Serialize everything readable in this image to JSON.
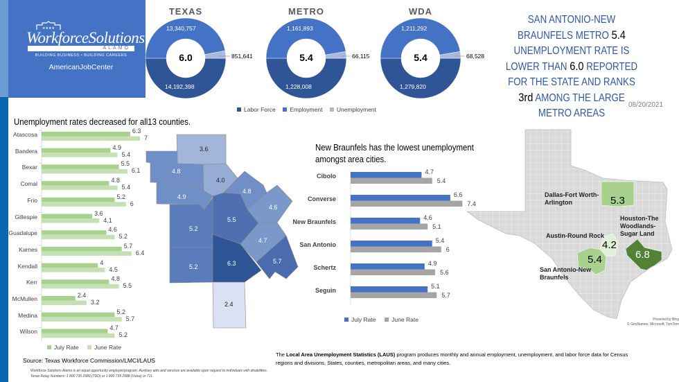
{
  "logo": {
    "name": "WorkforceSolutions",
    "sub": "ALAMO",
    "tagline": "BUILDING BUSINESS • BUILDING CAREERS",
    "ajc": "AmericanJobCenter"
  },
  "colors": {
    "labor_force": "#2f5597",
    "employment": "#4472c4",
    "unemployment": "#a9b8dc",
    "july_green": "#a9d18e",
    "june_green": "#c5e0b4",
    "july_blue": "#4472c4",
    "june_gray": "#a5a5a5",
    "headline": "#2f58a8"
  },
  "donuts": {
    "legend": [
      "Labor Force",
      "Employment",
      "Unemployment"
    ],
    "charts": [
      {
        "title": "TEXAS",
        "rate": "6.0",
        "labor_force": 14192398,
        "employment": 13340757,
        "unemployment": 851641,
        "labor_force_label": "14,192,398",
        "employment_label": "13,340,757",
        "unemployment_label": "851,641"
      },
      {
        "title": "METRO",
        "rate": "5.4",
        "labor_force": 1228008,
        "employment": 1161893,
        "unemployment": 66115,
        "labor_force_label": "1,228,008",
        "employment_label": "1,161,893",
        "unemployment_label": "66,115"
      },
      {
        "title": "WDA",
        "rate": "5.4",
        "labor_force": 1279820,
        "employment": 1211292,
        "unemployment": 68528,
        "labor_force_label": "1,279,820",
        "employment_label": "1,211,292",
        "unemployment_label": "68,528"
      }
    ]
  },
  "headline": {
    "l1": "SAN ANTONIO-NEW",
    "l2a": "BRAUNFELS METRO ",
    "l2b": "5.4",
    "l3": "UNEMPLOYMENT RATE IS",
    "l4a": "LOWER THAN ",
    "l4b": "6.0",
    "l4c": " REPORTED",
    "l5": "FOR THE STATE AND RANKS",
    "l6a": "3rd",
    "l6b": " AMONG THE LARGE",
    "l7": "METRO AREAS"
  },
  "date": "08/20/2021",
  "chart_data": [
    {
      "type": "bar",
      "orientation": "horizontal",
      "title": "Unemployment rates decreased for  all13 counties.",
      "categories": [
        "Atascosa",
        "Bandera",
        "Bexar",
        "Comal",
        "Frio",
        "Gillespie",
        "Guadalupe",
        "Karnes",
        "Kendall",
        "Kerr",
        "McMullen",
        "Medina",
        "Wilson"
      ],
      "series": [
        {
          "name": "July Rate",
          "values": [
            6.3,
            4.9,
            5.5,
            4.8,
            5.2,
            3.6,
            4.6,
            5.7,
            4,
            4.8,
            2.4,
            5.2,
            4.7
          ]
        },
        {
          "name": "June Rate",
          "values": [
            7,
            5.4,
            6.1,
            5.4,
            6,
            4.1,
            5.2,
            6.4,
            4.5,
            5.5,
            3.2,
            5.7,
            5.2
          ]
        }
      ],
      "legend": "bottom"
    },
    {
      "type": "bar",
      "orientation": "horizontal",
      "title": "New Braunfels has the lowest unemployment amongst area cities.",
      "categories": [
        "Cibolo",
        "Converse",
        "New Braunfels",
        "San Antonio",
        "Schertz",
        "Seguin"
      ],
      "series": [
        {
          "name": "July Rate",
          "values": [
            4.7,
            6.6,
            4.6,
            5.4,
            4.9,
            5.1
          ]
        },
        {
          "name": "June Rate",
          "values": [
            5.4,
            7.4,
            5.1,
            6,
            5.6,
            5.7
          ]
        }
      ],
      "legend": "bottom"
    }
  ],
  "county_map": {
    "values": {
      "Gillespie": "3.6",
      "Kerr": "4.8",
      "Kendall": "4.0",
      "Bandera": "4.9",
      "Comal": "4.8",
      "Guadalupe": "4.6",
      "Bexar": "5.5",
      "Medina": "5.2",
      "Frio": "5.2",
      "Atascosa": "6.3",
      "Wilson": "4.7",
      "Karnes": "5.7",
      "McMullen": "2.4"
    }
  },
  "texas_map": {
    "areas": [
      {
        "name": "Dallas-Fort Worth-Arlington",
        "value": "5.3"
      },
      {
        "name": "Houston-The Woodlands-Sugar Land",
        "value": "6.8"
      },
      {
        "name": "Austin-Round Rock",
        "value": "4.2"
      },
      {
        "name": "San Antonio-New Braunfels",
        "value": "5.4"
      }
    ],
    "credit1": "Powered by Bing",
    "credit2": "© GeoNames, Microsoft, TomTom"
  },
  "source": "Source: Texas Workforce Commission/LMCI/LAUS",
  "laus": {
    "pre": "The ",
    "bold": "Local Area Unemployment Statistics (LAUS)",
    "post": " program produces monthly and annual employment, unemployment, and labor force data for Census",
    "l2": "regions and divisions, States, counties, metropolitan areas, and many cities."
  },
  "disclaimer": {
    "l1": "Workforce Solutions Alamo is an equal opportunity employer/program. Auxiliary aids and services are available upon request to individuals with disabilities.",
    "l2": "Texas Relay Numbers: 1 800 735 2989  (TDD) or 1 800 735 2988 (Voice) or 711."
  }
}
